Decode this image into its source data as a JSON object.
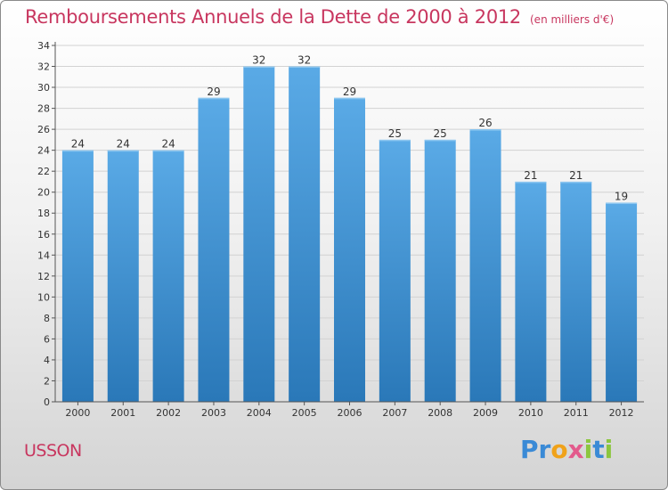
{
  "chart_data": {
    "type": "bar",
    "title": "Remboursements Annuels de la Dette de 2000 à 2012",
    "subtitle": "(en milliers d'€)",
    "categories": [
      "2000",
      "2001",
      "2002",
      "2003",
      "2004",
      "2005",
      "2006",
      "2007",
      "2008",
      "2009",
      "2010",
      "2011",
      "2012"
    ],
    "values": [
      24,
      24,
      24,
      29,
      32,
      32,
      29,
      25,
      25,
      26,
      21,
      21,
      19
    ],
    "ylim": [
      0,
      34
    ],
    "yticks": [
      0,
      2,
      4,
      6,
      8,
      10,
      12,
      14,
      16,
      18,
      20,
      22,
      24,
      26,
      28,
      30,
      32,
      34
    ],
    "xlabel": "",
    "ylabel": "",
    "grid": true,
    "bar_color_top": "#5aaae6",
    "bar_color_bottom": "#2a78b8"
  },
  "location": "USSON",
  "brand": {
    "text": "Proxiti",
    "colors": [
      "#3a8ad6",
      "#e35a8c",
      "#f0a21a",
      "#8cc63f"
    ]
  }
}
